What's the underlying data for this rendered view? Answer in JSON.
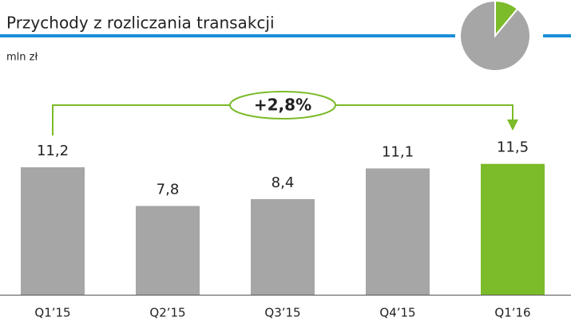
{
  "chart_data": [
    {
      "type": "bar",
      "title": "Przychody z rozliczania transakcji",
      "subtitle": "mln zł",
      "categories": [
        "Q1’15",
        "Q2’15",
        "Q3’15",
        "Q4’15",
        "Q1’16"
      ],
      "values": [
        11.2,
        7.8,
        8.4,
        11.1,
        11.5
      ],
      "value_labels": [
        "11,2",
        "7,8",
        "8,4",
        "11,1",
        "11,5"
      ],
      "colors": [
        "#a6a6a6",
        "#a6a6a6",
        "#a6a6a6",
        "#a6a6a6",
        "#7cbb29"
      ],
      "ylim": [
        0,
        14
      ],
      "annotation": "+2,8%"
    },
    {
      "type": "pie",
      "values": [
        11,
        89
      ],
      "colors": [
        "#7cbb29",
        "#a6a6a6"
      ]
    }
  ]
}
